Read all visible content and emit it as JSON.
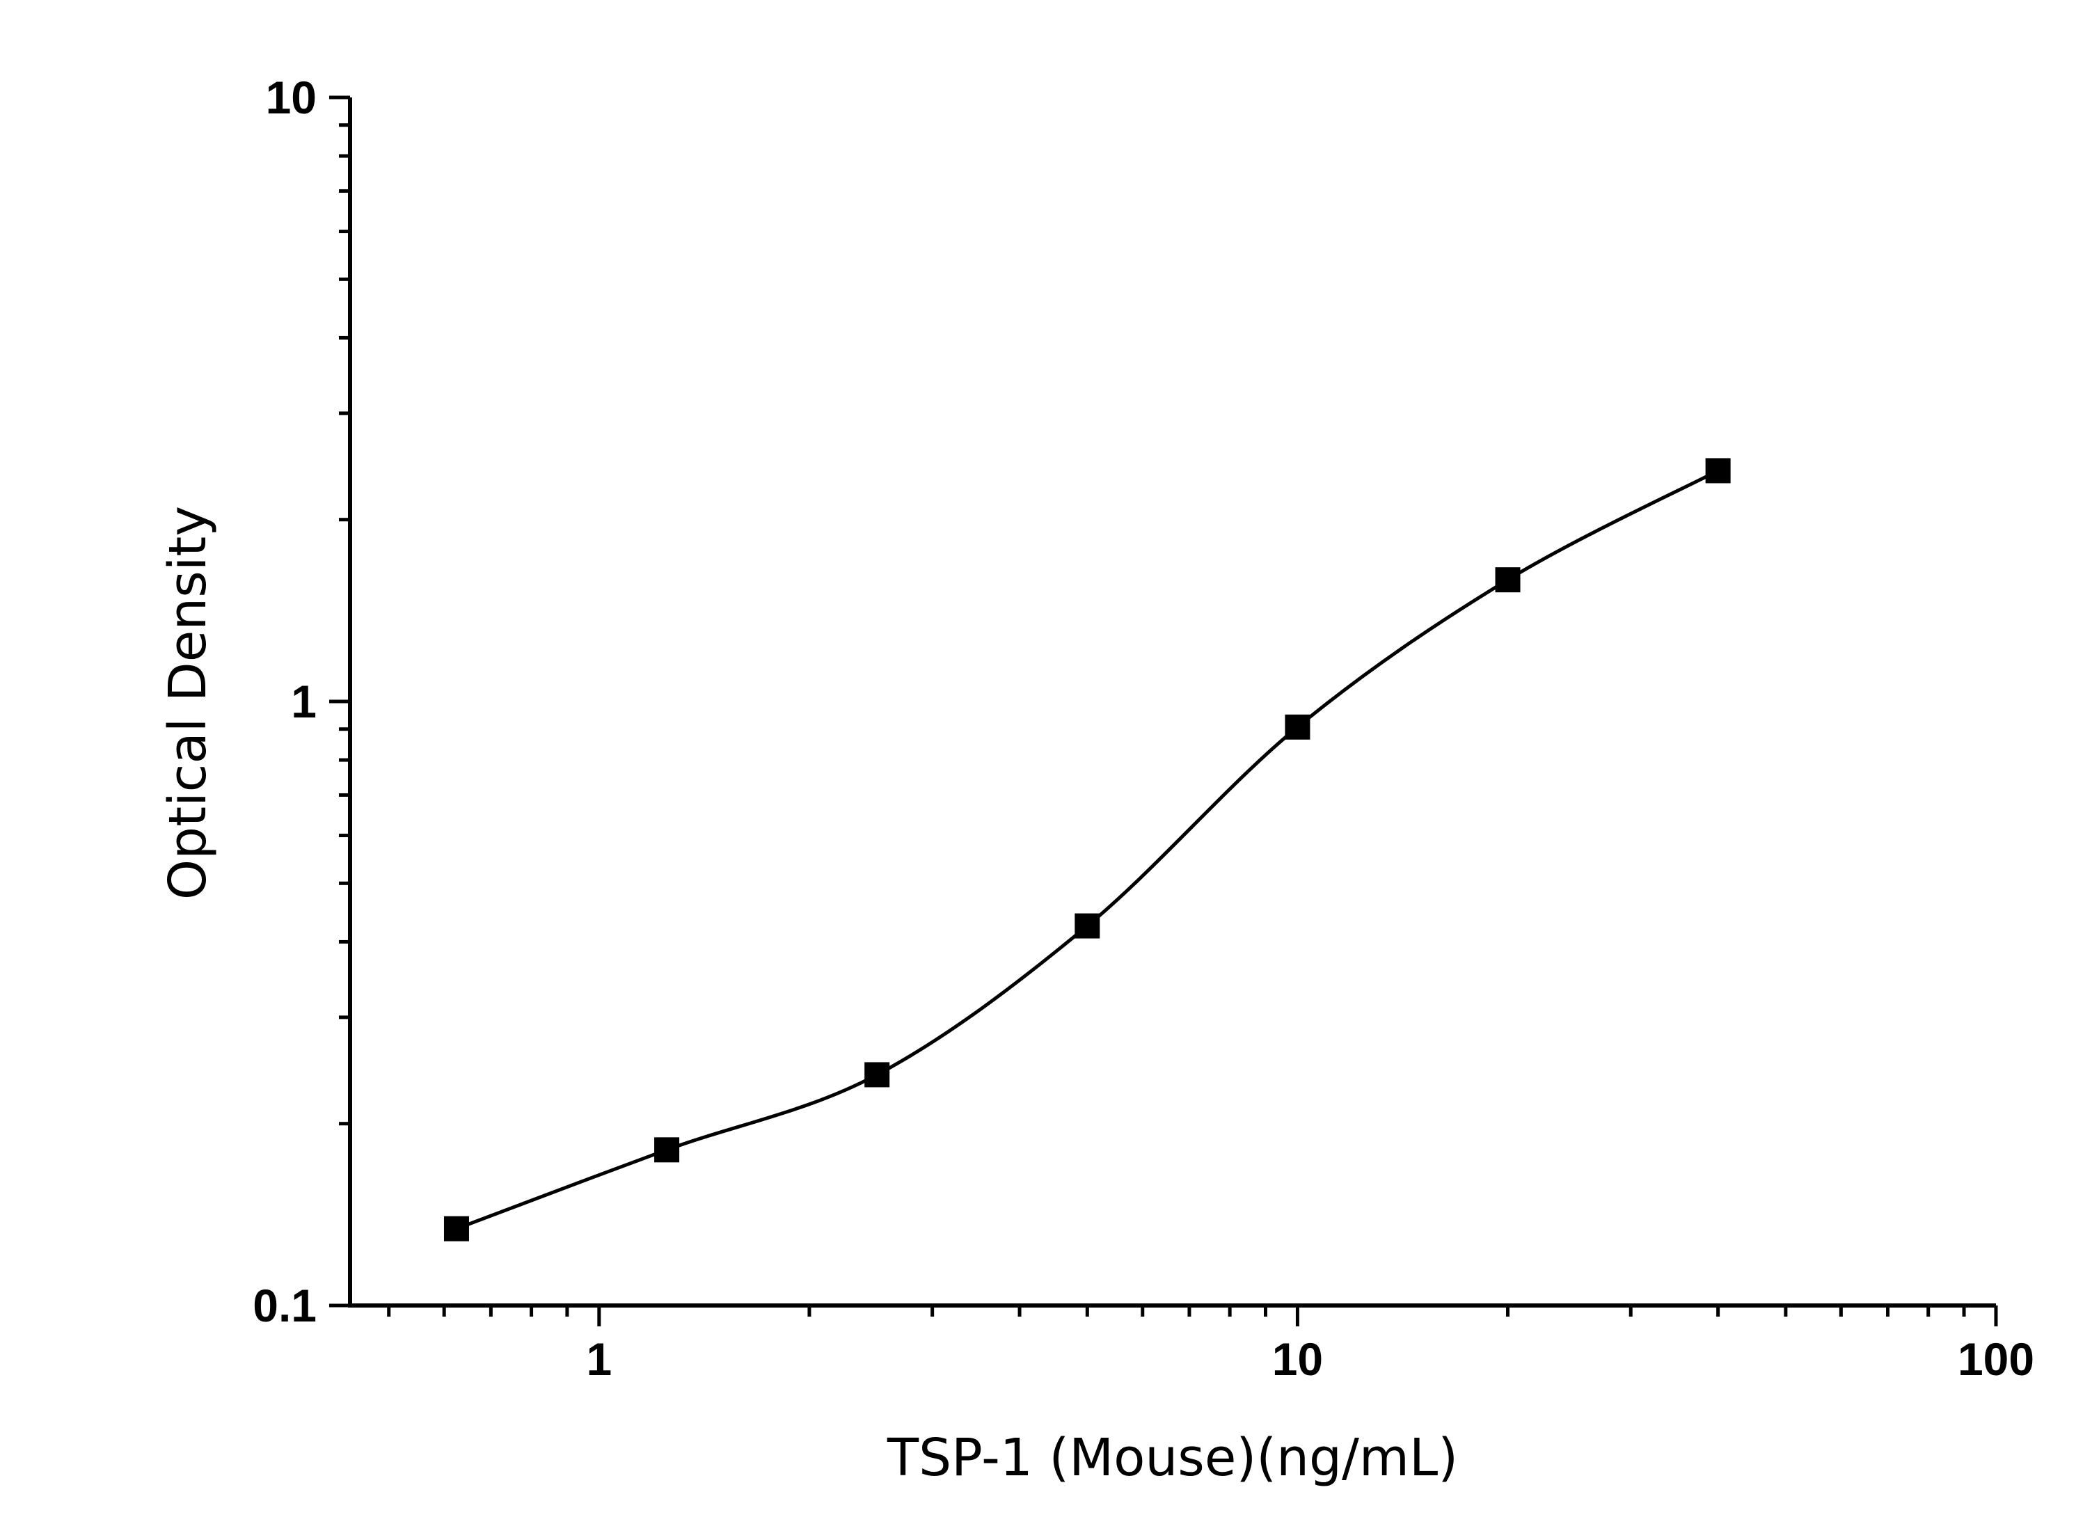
{
  "chart_data": {
    "type": "scatter",
    "title": "",
    "xlabel": "TSP-1 (Mouse)(ng/mL)",
    "ylabel": "Optical Density",
    "x_scale": "log",
    "y_scale": "log",
    "xlim": [
      0.44,
      100
    ],
    "ylim": [
      0.1,
      10
    ],
    "x_ticks": [
      {
        "value": 1,
        "label": "1"
      },
      {
        "value": 10,
        "label": "10"
      },
      {
        "value": 100,
        "label": "100"
      }
    ],
    "y_ticks": [
      {
        "value": 0.1,
        "label": "0.1"
      },
      {
        "value": 1,
        "label": "1"
      },
      {
        "value": 10,
        "label": "10"
      }
    ],
    "grid": false,
    "legend": "none",
    "marker": "square",
    "color": "#000000",
    "fit_curve": "smooth sigmoidal fit through points",
    "points": [
      {
        "x": 0.625,
        "y": 0.134
      },
      {
        "x": 1.25,
        "y": 0.181
      },
      {
        "x": 2.5,
        "y": 0.241
      },
      {
        "x": 5,
        "y": 0.425
      },
      {
        "x": 10,
        "y": 0.907
      },
      {
        "x": 20,
        "y": 1.59
      },
      {
        "x": 40,
        "y": 2.41
      }
    ]
  }
}
